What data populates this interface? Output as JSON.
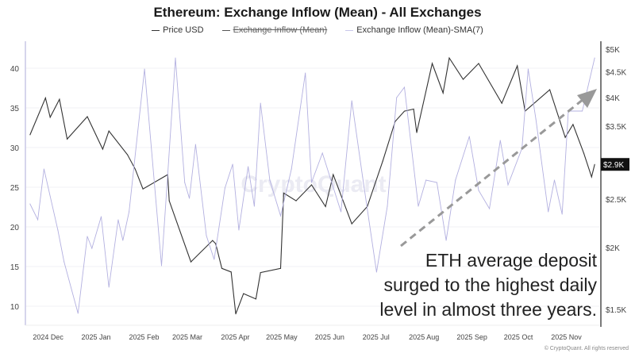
{
  "chart_data": {
    "type": "line",
    "title": "Ethereum: Exchange Inflow (Mean) - All Exchanges",
    "legend": {
      "placement": "top",
      "entries": [
        {
          "label": "Price USD",
          "color": "#333333",
          "hidden": false
        },
        {
          "label": "Exchange Inflow (Mean)",
          "color": "#555555",
          "hidden": true
        },
        {
          "label": "Exchange Inflow (Mean)-SMA(7)",
          "color": "#b3b0e0",
          "hidden": false
        }
      ]
    },
    "x_axis": {
      "type": "date",
      "range": [
        "2024-11-24",
        "2025-11-30"
      ],
      "ticks": [
        {
          "date": "2024-12-01",
          "label": "2024 Dec"
        },
        {
          "date": "2025-01-01",
          "label": "2025 Jan"
        },
        {
          "date": "2025-02-01",
          "label": "2025 Feb"
        },
        {
          "date": "2025-03-01",
          "label": "2025 Mar"
        },
        {
          "date": "2025-04-01",
          "label": "2025 Apr"
        },
        {
          "date": "2025-05-01",
          "label": "2025 May"
        },
        {
          "date": "2025-06-01",
          "label": "2025 Jun"
        },
        {
          "date": "2025-07-01",
          "label": "2025 Jul"
        },
        {
          "date": "2025-08-01",
          "label": "2025 Aug"
        },
        {
          "date": "2025-09-01",
          "label": "2025 Sep"
        },
        {
          "date": "2025-10-01",
          "label": "2025 Oct"
        },
        {
          "date": "2025-11-01",
          "label": "2025 Nov"
        }
      ]
    },
    "y_left": {
      "range": [
        7.6,
        42.4
      ],
      "ticks": [
        10,
        15,
        20,
        25,
        30,
        35,
        40
      ],
      "grid": true
    },
    "y_right": {
      "scale": "log",
      "range": [
        1395,
        5000
      ],
      "ticks": [
        {
          "value": 1500,
          "label": "$1.5K"
        },
        {
          "value": 2000,
          "label": "$2K"
        },
        {
          "value": 2500,
          "label": "$2.5K"
        },
        {
          "value": 3500,
          "label": "$3.5K"
        },
        {
          "value": 4000,
          "label": "$4K"
        },
        {
          "value": 4500,
          "label": "$4.5K"
        },
        {
          "value": 5000,
          "label": "$5K"
        }
      ],
      "current": {
        "value": 2935,
        "label": "$2.9K"
      }
    },
    "series": [
      {
        "name": "Price USD",
        "axis": "right",
        "color": "#333333",
        "points": [
          [
            "2024-11-27",
            3365
          ],
          [
            "2024-12-07",
            3990
          ],
          [
            "2024-12-10",
            3650
          ],
          [
            "2024-12-16",
            3965
          ],
          [
            "2024-12-21",
            3300
          ],
          [
            "2025-01-03",
            3660
          ],
          [
            "2025-01-13",
            3150
          ],
          [
            "2025-01-17",
            3425
          ],
          [
            "2025-01-29",
            3070
          ],
          [
            "2025-02-03",
            2870
          ],
          [
            "2025-02-08",
            2620
          ],
          [
            "2025-02-24",
            2800
          ],
          [
            "2025-02-25",
            2480
          ],
          [
            "2025-03-11",
            1870
          ],
          [
            "2025-03-25",
            2065
          ],
          [
            "2025-03-27",
            2035
          ],
          [
            "2025-03-31",
            1815
          ],
          [
            "2025-04-06",
            1785
          ],
          [
            "2025-04-09",
            1470
          ],
          [
            "2025-04-14",
            1615
          ],
          [
            "2025-04-22",
            1575
          ],
          [
            "2025-04-25",
            1780
          ],
          [
            "2025-05-08",
            1815
          ],
          [
            "2025-05-10",
            2570
          ],
          [
            "2025-05-18",
            2480
          ],
          [
            "2025-05-28",
            2670
          ],
          [
            "2025-06-06",
            2415
          ],
          [
            "2025-06-11",
            2800
          ],
          [
            "2025-06-23",
            2230
          ],
          [
            "2025-07-03",
            2415
          ],
          [
            "2025-07-13",
            2980
          ],
          [
            "2025-07-21",
            3580
          ],
          [
            "2025-07-27",
            3755
          ],
          [
            "2025-08-02",
            3790
          ],
          [
            "2025-08-04",
            3400
          ],
          [
            "2025-08-14",
            4680
          ],
          [
            "2025-08-21",
            4085
          ],
          [
            "2025-08-25",
            4800
          ],
          [
            "2025-09-03",
            4350
          ],
          [
            "2025-09-13",
            4680
          ],
          [
            "2025-09-28",
            3895
          ],
          [
            "2025-10-08",
            4630
          ],
          [
            "2025-10-13",
            3755
          ],
          [
            "2025-10-29",
            4145
          ],
          [
            "2025-11-08",
            3325
          ],
          [
            "2025-11-13",
            3530
          ],
          [
            "2025-11-20",
            3090
          ],
          [
            "2025-11-25",
            2770
          ],
          [
            "2025-11-27",
            2935
          ]
        ]
      },
      {
        "name": "Exchange Inflow (Mean)-SMA(7)",
        "axis": "left",
        "color": "#b3b0e0",
        "points": [
          [
            "2024-11-27",
            22.9
          ],
          [
            "2024-12-02",
            20.9
          ],
          [
            "2024-12-06",
            27.3
          ],
          [
            "2024-12-15",
            19.6
          ],
          [
            "2024-12-19",
            15.6
          ],
          [
            "2024-12-28",
            9.1
          ],
          [
            "2025-01-03",
            18.8
          ],
          [
            "2025-01-06",
            17.3
          ],
          [
            "2025-01-12",
            21.3
          ],
          [
            "2025-01-17",
            12.4
          ],
          [
            "2025-01-23",
            20.9
          ],
          [
            "2025-01-26",
            18.3
          ],
          [
            "2025-01-30",
            21.9
          ],
          [
            "2025-02-09",
            39.9
          ],
          [
            "2025-02-20",
            15.1
          ],
          [
            "2025-02-24",
            26.6
          ],
          [
            "2025-03-01",
            41.3
          ],
          [
            "2025-03-07",
            25.6
          ],
          [
            "2025-03-10",
            23.6
          ],
          [
            "2025-03-14",
            30.4
          ],
          [
            "2025-03-21",
            18.9
          ],
          [
            "2025-03-26",
            15.9
          ],
          [
            "2025-04-02",
            24.9
          ],
          [
            "2025-04-07",
            27.9
          ],
          [
            "2025-04-11",
            19.6
          ],
          [
            "2025-04-17",
            27.6
          ],
          [
            "2025-04-21",
            22.6
          ],
          [
            "2025-04-25",
            35.6
          ],
          [
            "2025-05-01",
            25.9
          ],
          [
            "2025-05-08",
            21.4
          ],
          [
            "2025-05-15",
            27.3
          ],
          [
            "2025-05-24",
            39.4
          ],
          [
            "2025-05-28",
            25.6
          ],
          [
            "2025-06-04",
            29.3
          ],
          [
            "2025-06-16",
            21.9
          ],
          [
            "2025-06-23",
            35.9
          ],
          [
            "2025-06-30",
            26.3
          ],
          [
            "2025-07-09",
            14.3
          ],
          [
            "2025-07-16",
            22.6
          ],
          [
            "2025-07-22",
            36.3
          ],
          [
            "2025-07-27",
            37.6
          ],
          [
            "2025-08-05",
            22.6
          ],
          [
            "2025-08-10",
            25.9
          ],
          [
            "2025-08-17",
            25.6
          ],
          [
            "2025-08-23",
            18.3
          ],
          [
            "2025-08-29",
            25.9
          ],
          [
            "2025-09-07",
            31.4
          ],
          [
            "2025-09-13",
            24.6
          ],
          [
            "2025-09-20",
            22.3
          ],
          [
            "2025-09-27",
            30.9
          ],
          [
            "2025-10-02",
            25.3
          ],
          [
            "2025-10-11",
            29.9
          ],
          [
            "2025-10-15",
            39.9
          ],
          [
            "2025-10-20",
            33.6
          ],
          [
            "2025-10-28",
            21.9
          ],
          [
            "2025-11-01",
            25.9
          ],
          [
            "2025-11-06",
            21.6
          ],
          [
            "2025-11-10",
            34.6
          ],
          [
            "2025-11-19",
            34.6
          ],
          [
            "2025-11-27",
            41.3
          ]
        ]
      }
    ],
    "annotation": {
      "lines": [
        "ETH average deposit",
        "surged to the highest daily",
        "level in almost three years."
      ],
      "arrow": "dashed upward trend arrow",
      "arrow_color": "#999999"
    },
    "watermark": "CryptoQuant",
    "footer": "© CryptoQuant. All rights reserved"
  }
}
